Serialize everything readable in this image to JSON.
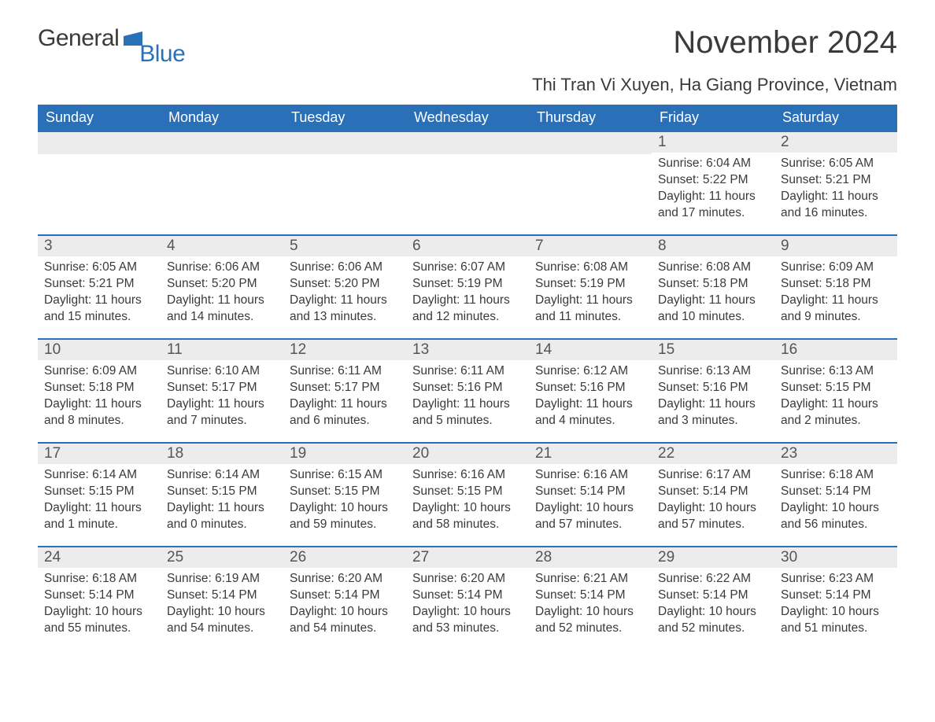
{
  "logo": {
    "text1": "General",
    "text2": "Blue",
    "shape_color": "#2a70b8"
  },
  "title": "November 2024",
  "location": "Thi Tran Vi Xuyen, Ha Giang Province, Vietnam",
  "colors": {
    "header_bg": "#2a70b8",
    "header_text": "#ffffff",
    "daynum_bg": "#ececec",
    "row_divider": "#2a70b8",
    "body_text": "#3a3a3a",
    "page_bg": "#ffffff"
  },
  "typography": {
    "title_fontsize": 40,
    "location_fontsize": 22,
    "weekday_fontsize": 18,
    "daynum_fontsize": 19,
    "body_fontsize": 15.5,
    "font_family": "Segoe UI"
  },
  "weekdays": [
    "Sunday",
    "Monday",
    "Tuesday",
    "Wednesday",
    "Thursday",
    "Friday",
    "Saturday"
  ],
  "weeks": [
    [
      {
        "n": "",
        "sunrise": "",
        "sunset": "",
        "daylight": ""
      },
      {
        "n": "",
        "sunrise": "",
        "sunset": "",
        "daylight": ""
      },
      {
        "n": "",
        "sunrise": "",
        "sunset": "",
        "daylight": ""
      },
      {
        "n": "",
        "sunrise": "",
        "sunset": "",
        "daylight": ""
      },
      {
        "n": "",
        "sunrise": "",
        "sunset": "",
        "daylight": ""
      },
      {
        "n": "1",
        "sunrise": "Sunrise: 6:04 AM",
        "sunset": "Sunset: 5:22 PM",
        "daylight": "Daylight: 11 hours and 17 minutes."
      },
      {
        "n": "2",
        "sunrise": "Sunrise: 6:05 AM",
        "sunset": "Sunset: 5:21 PM",
        "daylight": "Daylight: 11 hours and 16 minutes."
      }
    ],
    [
      {
        "n": "3",
        "sunrise": "Sunrise: 6:05 AM",
        "sunset": "Sunset: 5:21 PM",
        "daylight": "Daylight: 11 hours and 15 minutes."
      },
      {
        "n": "4",
        "sunrise": "Sunrise: 6:06 AM",
        "sunset": "Sunset: 5:20 PM",
        "daylight": "Daylight: 11 hours and 14 minutes."
      },
      {
        "n": "5",
        "sunrise": "Sunrise: 6:06 AM",
        "sunset": "Sunset: 5:20 PM",
        "daylight": "Daylight: 11 hours and 13 minutes."
      },
      {
        "n": "6",
        "sunrise": "Sunrise: 6:07 AM",
        "sunset": "Sunset: 5:19 PM",
        "daylight": "Daylight: 11 hours and 12 minutes."
      },
      {
        "n": "7",
        "sunrise": "Sunrise: 6:08 AM",
        "sunset": "Sunset: 5:19 PM",
        "daylight": "Daylight: 11 hours and 11 minutes."
      },
      {
        "n": "8",
        "sunrise": "Sunrise: 6:08 AM",
        "sunset": "Sunset: 5:18 PM",
        "daylight": "Daylight: 11 hours and 10 minutes."
      },
      {
        "n": "9",
        "sunrise": "Sunrise: 6:09 AM",
        "sunset": "Sunset: 5:18 PM",
        "daylight": "Daylight: 11 hours and 9 minutes."
      }
    ],
    [
      {
        "n": "10",
        "sunrise": "Sunrise: 6:09 AM",
        "sunset": "Sunset: 5:18 PM",
        "daylight": "Daylight: 11 hours and 8 minutes."
      },
      {
        "n": "11",
        "sunrise": "Sunrise: 6:10 AM",
        "sunset": "Sunset: 5:17 PM",
        "daylight": "Daylight: 11 hours and 7 minutes."
      },
      {
        "n": "12",
        "sunrise": "Sunrise: 6:11 AM",
        "sunset": "Sunset: 5:17 PM",
        "daylight": "Daylight: 11 hours and 6 minutes."
      },
      {
        "n": "13",
        "sunrise": "Sunrise: 6:11 AM",
        "sunset": "Sunset: 5:16 PM",
        "daylight": "Daylight: 11 hours and 5 minutes."
      },
      {
        "n": "14",
        "sunrise": "Sunrise: 6:12 AM",
        "sunset": "Sunset: 5:16 PM",
        "daylight": "Daylight: 11 hours and 4 minutes."
      },
      {
        "n": "15",
        "sunrise": "Sunrise: 6:13 AM",
        "sunset": "Sunset: 5:16 PM",
        "daylight": "Daylight: 11 hours and 3 minutes."
      },
      {
        "n": "16",
        "sunrise": "Sunrise: 6:13 AM",
        "sunset": "Sunset: 5:15 PM",
        "daylight": "Daylight: 11 hours and 2 minutes."
      }
    ],
    [
      {
        "n": "17",
        "sunrise": "Sunrise: 6:14 AM",
        "sunset": "Sunset: 5:15 PM",
        "daylight": "Daylight: 11 hours and 1 minute."
      },
      {
        "n": "18",
        "sunrise": "Sunrise: 6:14 AM",
        "sunset": "Sunset: 5:15 PM",
        "daylight": "Daylight: 11 hours and 0 minutes."
      },
      {
        "n": "19",
        "sunrise": "Sunrise: 6:15 AM",
        "sunset": "Sunset: 5:15 PM",
        "daylight": "Daylight: 10 hours and 59 minutes."
      },
      {
        "n": "20",
        "sunrise": "Sunrise: 6:16 AM",
        "sunset": "Sunset: 5:15 PM",
        "daylight": "Daylight: 10 hours and 58 minutes."
      },
      {
        "n": "21",
        "sunrise": "Sunrise: 6:16 AM",
        "sunset": "Sunset: 5:14 PM",
        "daylight": "Daylight: 10 hours and 57 minutes."
      },
      {
        "n": "22",
        "sunrise": "Sunrise: 6:17 AM",
        "sunset": "Sunset: 5:14 PM",
        "daylight": "Daylight: 10 hours and 57 minutes."
      },
      {
        "n": "23",
        "sunrise": "Sunrise: 6:18 AM",
        "sunset": "Sunset: 5:14 PM",
        "daylight": "Daylight: 10 hours and 56 minutes."
      }
    ],
    [
      {
        "n": "24",
        "sunrise": "Sunrise: 6:18 AM",
        "sunset": "Sunset: 5:14 PM",
        "daylight": "Daylight: 10 hours and 55 minutes."
      },
      {
        "n": "25",
        "sunrise": "Sunrise: 6:19 AM",
        "sunset": "Sunset: 5:14 PM",
        "daylight": "Daylight: 10 hours and 54 minutes."
      },
      {
        "n": "26",
        "sunrise": "Sunrise: 6:20 AM",
        "sunset": "Sunset: 5:14 PM",
        "daylight": "Daylight: 10 hours and 54 minutes."
      },
      {
        "n": "27",
        "sunrise": "Sunrise: 6:20 AM",
        "sunset": "Sunset: 5:14 PM",
        "daylight": "Daylight: 10 hours and 53 minutes."
      },
      {
        "n": "28",
        "sunrise": "Sunrise: 6:21 AM",
        "sunset": "Sunset: 5:14 PM",
        "daylight": "Daylight: 10 hours and 52 minutes."
      },
      {
        "n": "29",
        "sunrise": "Sunrise: 6:22 AM",
        "sunset": "Sunset: 5:14 PM",
        "daylight": "Daylight: 10 hours and 52 minutes."
      },
      {
        "n": "30",
        "sunrise": "Sunrise: 6:23 AM",
        "sunset": "Sunset: 5:14 PM",
        "daylight": "Daylight: 10 hours and 51 minutes."
      }
    ]
  ]
}
